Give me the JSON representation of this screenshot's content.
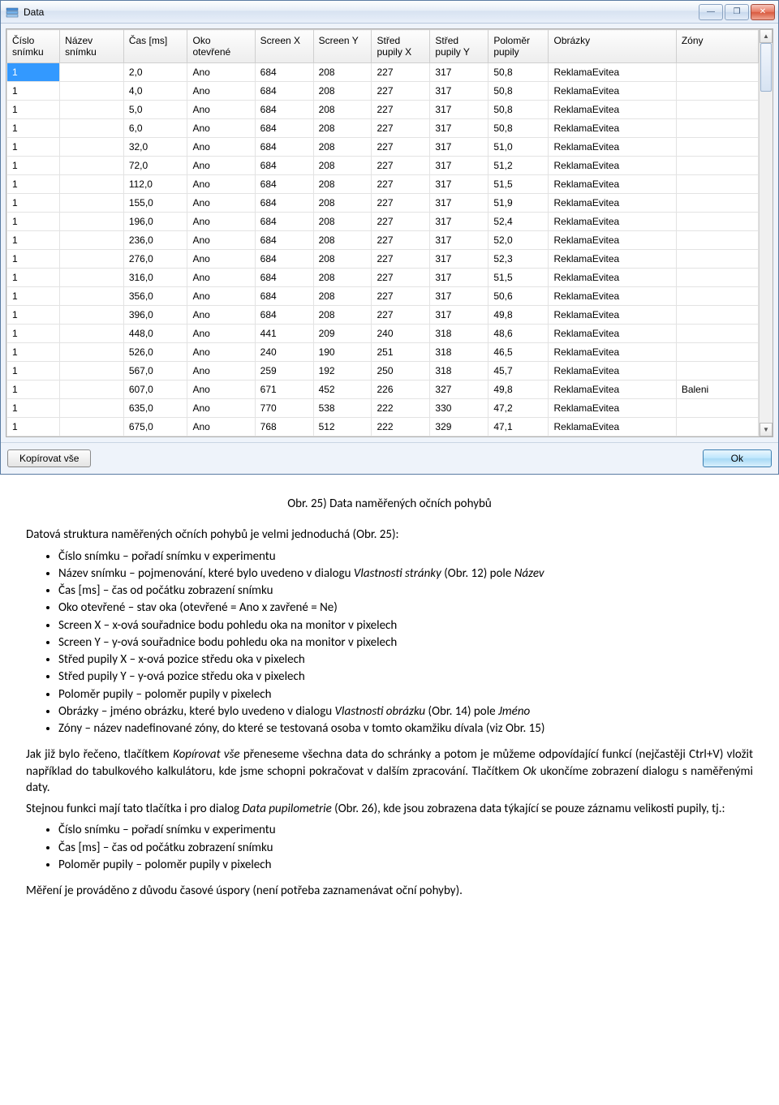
{
  "window": {
    "title": "Data",
    "icon_name": "data-icon",
    "btn_min_label": "—",
    "btn_max_label": "❐",
    "btn_close_label": "✕",
    "copy_all_label": "Kopírovat vše",
    "ok_label": "Ok"
  },
  "table": {
    "col_widths": [
      "58",
      "70",
      "70",
      "74",
      "64",
      "64",
      "64",
      "64",
      "66",
      "140",
      "90"
    ],
    "headers": [
      "Číslo snímku",
      "Název snímku",
      "Čas [ms]",
      "Oko otevřené",
      "Screen X",
      "Screen Y",
      "Střed pupily X",
      "Střed pupily Y",
      "Poloměr pupily",
      "Obrázky",
      "Zóny"
    ],
    "rows": [
      [
        "1",
        "",
        "2,0",
        "Ano",
        "684",
        "208",
        "227",
        "317",
        "50,8",
        "ReklamaEvitea",
        ""
      ],
      [
        "1",
        "",
        "4,0",
        "Ano",
        "684",
        "208",
        "227",
        "317",
        "50,8",
        "ReklamaEvitea",
        ""
      ],
      [
        "1",
        "",
        "5,0",
        "Ano",
        "684",
        "208",
        "227",
        "317",
        "50,8",
        "ReklamaEvitea",
        ""
      ],
      [
        "1",
        "",
        "6,0",
        "Ano",
        "684",
        "208",
        "227",
        "317",
        "50,8",
        "ReklamaEvitea",
        ""
      ],
      [
        "1",
        "",
        "32,0",
        "Ano",
        "684",
        "208",
        "227",
        "317",
        "51,0",
        "ReklamaEvitea",
        ""
      ],
      [
        "1",
        "",
        "72,0",
        "Ano",
        "684",
        "208",
        "227",
        "317",
        "51,2",
        "ReklamaEvitea",
        ""
      ],
      [
        "1",
        "",
        "112,0",
        "Ano",
        "684",
        "208",
        "227",
        "317",
        "51,5",
        "ReklamaEvitea",
        ""
      ],
      [
        "1",
        "",
        "155,0",
        "Ano",
        "684",
        "208",
        "227",
        "317",
        "51,9",
        "ReklamaEvitea",
        ""
      ],
      [
        "1",
        "",
        "196,0",
        "Ano",
        "684",
        "208",
        "227",
        "317",
        "52,4",
        "ReklamaEvitea",
        ""
      ],
      [
        "1",
        "",
        "236,0",
        "Ano",
        "684",
        "208",
        "227",
        "317",
        "52,0",
        "ReklamaEvitea",
        ""
      ],
      [
        "1",
        "",
        "276,0",
        "Ano",
        "684",
        "208",
        "227",
        "317",
        "52,3",
        "ReklamaEvitea",
        ""
      ],
      [
        "1",
        "",
        "316,0",
        "Ano",
        "684",
        "208",
        "227",
        "317",
        "51,5",
        "ReklamaEvitea",
        ""
      ],
      [
        "1",
        "",
        "356,0",
        "Ano",
        "684",
        "208",
        "227",
        "317",
        "50,6",
        "ReklamaEvitea",
        ""
      ],
      [
        "1",
        "",
        "396,0",
        "Ano",
        "684",
        "208",
        "227",
        "317",
        "49,8",
        "ReklamaEvitea",
        ""
      ],
      [
        "1",
        "",
        "448,0",
        "Ano",
        "441",
        "209",
        "240",
        "318",
        "48,6",
        "ReklamaEvitea",
        ""
      ],
      [
        "1",
        "",
        "526,0",
        "Ano",
        "240",
        "190",
        "251",
        "318",
        "46,5",
        "ReklamaEvitea",
        ""
      ],
      [
        "1",
        "",
        "567,0",
        "Ano",
        "259",
        "192",
        "250",
        "318",
        "45,7",
        "ReklamaEvitea",
        ""
      ],
      [
        "1",
        "",
        "607,0",
        "Ano",
        "671",
        "452",
        "226",
        "327",
        "49,8",
        "ReklamaEvitea",
        "Baleni"
      ],
      [
        "1",
        "",
        "635,0",
        "Ano",
        "770",
        "538",
        "222",
        "330",
        "47,2",
        "ReklamaEvitea",
        ""
      ],
      [
        "1",
        "",
        "675,0",
        "Ano",
        "768",
        "512",
        "222",
        "329",
        "47,1",
        "ReklamaEvitea",
        ""
      ]
    ],
    "selected_row": 0
  },
  "doc": {
    "caption": "Obr. 25) Data naměřených očních pohybů",
    "intro": "Datová struktura naměřených očních pohybů je velmi jednoduchá (Obr. 25):",
    "bullets1": [
      "Číslo snímku – pořadí snímku v experimentu",
      "Název snímku – pojmenování, které bylo uvedeno v dialogu <i>Vlastnosti stránky</i> (Obr. 12) pole <i>Název</i>",
      "Čas [ms] – čas od počátku zobrazení snímku",
      "Oko otevřené – stav oka (otevřené = Ano x zavřené = Ne)",
      "Screen X – x-ová souřadnice bodu pohledu oka na monitor v pixelech",
      "Screen Y – y-ová souřadnice bodu pohledu oka na monitor v pixelech",
      "Střed pupily X – x-ová pozice středu oka v pixelech",
      "Střed pupily Y – y-ová pozice středu oka v pixelech",
      "Poloměr pupily – poloměr pupily v pixelech",
      "Obrázky – jméno obrázku, které bylo uvedeno v dialogu <i>Vlastnosti obrázku</i> (Obr. 14) pole <i>Jméno</i>",
      "Zóny – název nadefinované zóny, do které se testovaná osoba v tomto okamžiku dívala (viz Obr. 15)"
    ],
    "para2": "Jak již bylo řečeno, tlačítkem <i>Kopírovat vše</i> přeneseme všechna data do schránky a potom je můžeme odpovídající funkcí (nejčastěji Ctrl+V) vložit například do tabulkového kalkulátoru, kde jsme schopni pokračovat v dalším zpracování. Tlačítkem <i>Ok</i> ukončíme zobrazení dialogu s naměřenými daty.",
    "para3": "Stejnou funkci mají tato tlačítka i pro dialog <i>Data pupilometrie</i> (Obr. 26), kde jsou zobrazena data týkající se pouze záznamu velikosti pupily, tj.:",
    "bullets2": [
      "Číslo snímku – pořadí snímku v experimentu",
      "Čas [ms] – čas od počátku zobrazení snímku",
      "Poloměr pupily – poloměr pupily v pixelech"
    ],
    "para4": "Měření je prováděno z důvodu časové úspory (není potřeba zaznamenávat oční pohyby)."
  }
}
